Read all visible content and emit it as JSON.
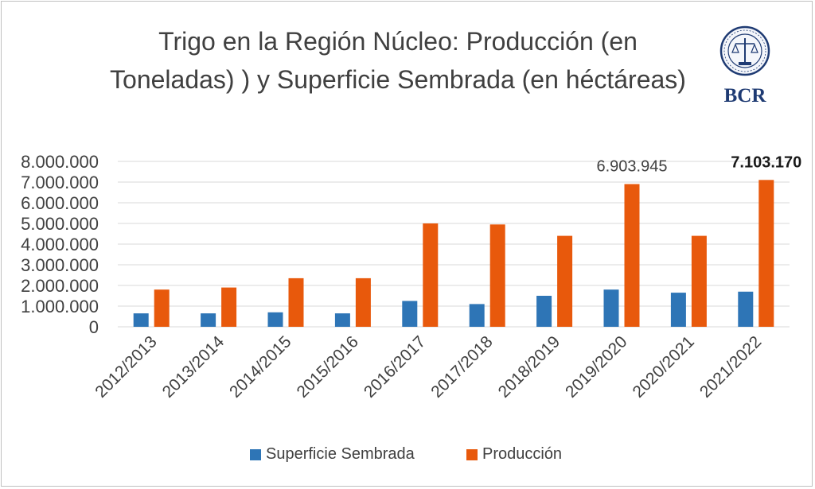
{
  "title": "Trigo en la Región Núcleo: Producción (en Toneladas) ) y  Superficie Sembrada (en héctáreas)",
  "logo_text": "BCR",
  "colors": {
    "superficie": "#2E75B6",
    "produccion": "#E8590C",
    "grid": "#d9d9d9",
    "text": "#404040"
  },
  "chart_data": {
    "type": "bar",
    "title": "Trigo en la Región Núcleo: Producción (en Toneladas) ) y  Superficie Sembrada (en héctáreas)",
    "categories": [
      "2012/2013",
      "2013/2014",
      "2014/2015",
      "2015/2016",
      "2016/2017",
      "2017/2018",
      "2018/2019",
      "2019/2020",
      "2020/2021",
      "2021/2022"
    ],
    "series": [
      {
        "name": "Superficie Sembrada",
        "values": [
          650000,
          650000,
          700000,
          650000,
          1250000,
          1100000,
          1500000,
          1800000,
          1650000,
          1700000
        ]
      },
      {
        "name": "Producción",
        "values": [
          1800000,
          1900000,
          2350000,
          2350000,
          5000000,
          4950000,
          4400000,
          6903945,
          4400000,
          7103170
        ]
      }
    ],
    "ylim": [
      0,
      8000000
    ],
    "yticks": [
      "0",
      "1.000.000",
      "2.000.000",
      "3.000.000",
      "4.000.000",
      "5.000.000",
      "6.000.000",
      "7.000.000",
      "8.000.000"
    ],
    "data_labels": [
      {
        "category": "2019/2020",
        "text": "6.903.945",
        "bold": false
      },
      {
        "category": "2021/2022",
        "text": "7.103.170",
        "bold": true
      }
    ],
    "grid": true,
    "legend": "bottom"
  }
}
